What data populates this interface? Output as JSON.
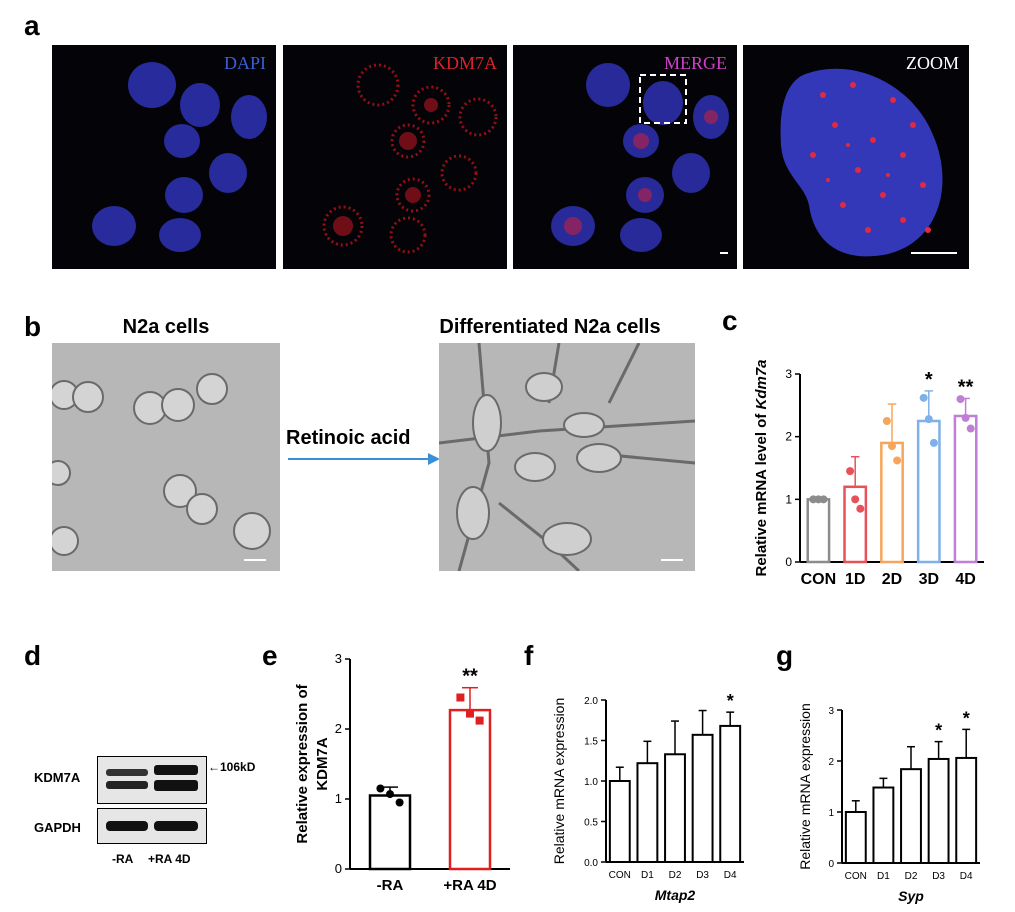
{
  "panels": {
    "a": {
      "label": "a",
      "images": [
        {
          "label": "DAPI",
          "color": "#3a5fd8"
        },
        {
          "label": "KDM7A",
          "color": "#e0202a"
        },
        {
          "label": "MERGE",
          "color": "#d040c8"
        },
        {
          "label": "ZOOM",
          "color": "#ffffff"
        }
      ]
    },
    "b": {
      "label": "b",
      "left_title": "N2a cells",
      "right_title": "Differentiated N2a cells",
      "arrow_label": "Retinoic acid",
      "arrow_color": "#3b8fd6"
    },
    "c": {
      "label": "c"
    },
    "d": {
      "label": "d",
      "rows": [
        "KDM7A",
        "GAPDH"
      ],
      "lanes": [
        "-RA",
        "+RA 4D"
      ],
      "marker": "←106kD"
    },
    "e": {
      "label": "e"
    },
    "f": {
      "label": "f"
    },
    "g": {
      "label": "g"
    }
  },
  "chart_data": [
    {
      "panel": "c",
      "type": "bar",
      "categories": [
        "CON",
        "1D",
        "2D",
        "3D",
        "4D"
      ],
      "values": [
        1.0,
        1.2,
        1.9,
        2.25,
        2.33
      ],
      "errors": [
        0.02,
        0.48,
        0.62,
        0.48,
        0.28
      ],
      "points": [
        [
          1.0,
          1.0,
          1.0
        ],
        [
          1.45,
          1.0,
          0.85
        ],
        [
          2.25,
          1.85,
          1.62
        ],
        [
          2.62,
          2.28,
          1.9
        ],
        [
          2.6,
          2.3,
          2.13
        ]
      ],
      "significance": [
        "",
        "",
        "",
        "*",
        "**"
      ],
      "colors": [
        "#8c8c8c",
        "#e8515a",
        "#f5a65b",
        "#7fb0e8",
        "#c07fd6"
      ],
      "ylabel": "Relative mRNA level of",
      "ylabel_italic": "Kdm7a",
      "ylim": [
        0,
        3
      ],
      "yticks": [
        "0",
        "1",
        "2",
        "3"
      ]
    },
    {
      "panel": "e",
      "type": "bar",
      "categories": [
        "-RA",
        "+RA 4D"
      ],
      "values": [
        1.05,
        2.27
      ],
      "errors": [
        0.12,
        0.32
      ],
      "points": [
        [
          1.15,
          1.07,
          0.95
        ],
        [
          2.45,
          2.22,
          2.12
        ]
      ],
      "significance": [
        "",
        "**"
      ],
      "colors": [
        "#000000",
        "#e02020"
      ],
      "ylabel": "Relative expression of",
      "ylabel2": "KDM7A",
      "ylim": [
        0,
        3
      ],
      "yticks": [
        "0",
        "1",
        "2",
        "3"
      ]
    },
    {
      "panel": "f",
      "type": "bar",
      "categories": [
        "CON",
        "D1",
        "D2",
        "D3",
        "D4"
      ],
      "values": [
        1.0,
        1.22,
        1.33,
        1.57,
        1.68
      ],
      "errors": [
        0.17,
        0.27,
        0.41,
        0.3,
        0.17
      ],
      "significance": [
        "",
        "",
        "",
        "",
        "*"
      ],
      "xlabel": "Mtap2",
      "ylabel": "Relative mRNA expression",
      "ylim": [
        0,
        2.0
      ],
      "yticks": [
        "0.0",
        "0.5",
        "1.0",
        "1.5",
        "2.0"
      ]
    },
    {
      "panel": "g",
      "type": "bar",
      "categories": [
        "CON",
        "D1",
        "D2",
        "D3",
        "D4"
      ],
      "values": [
        1.0,
        1.48,
        1.84,
        2.04,
        2.06
      ],
      "errors": [
        0.22,
        0.18,
        0.44,
        0.34,
        0.56
      ],
      "significance": [
        "",
        "",
        "",
        "*",
        "*"
      ],
      "xlabel": "Syp",
      "ylabel": "Relative mRNA expression",
      "ylim": [
        0,
        3
      ],
      "yticks": [
        "0",
        "1",
        "2",
        "3"
      ]
    }
  ]
}
